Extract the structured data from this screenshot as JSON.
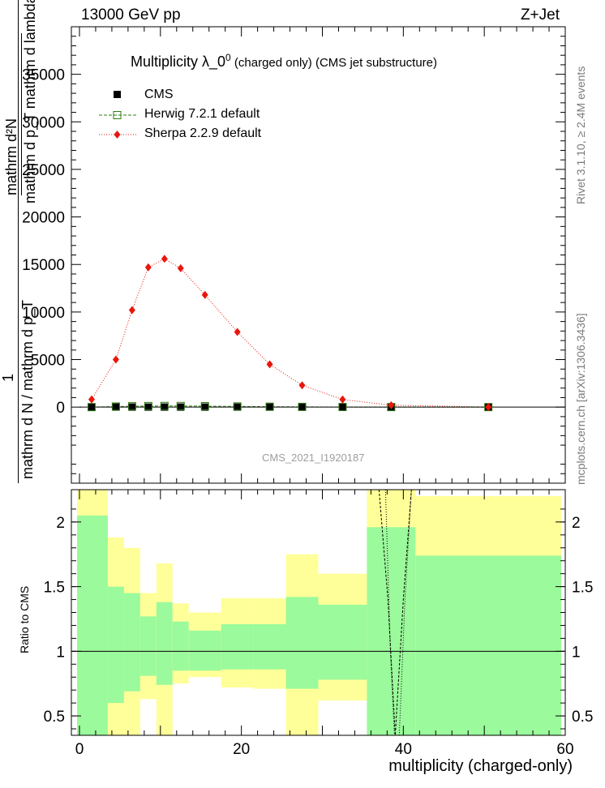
{
  "header": {
    "energy_label": "13000 GeV pp",
    "process_label": "Z+Jet"
  },
  "side_labels": {
    "rivet": "Rivet 3.1.10, ≥ 2.4M events",
    "mcplots": "mcplots.cern.ch [arXiv:1306.3436]"
  },
  "colors": {
    "data": "#000000",
    "herwig": "#2e7d12",
    "sherpa": "#e8160c",
    "band_inner": "#9bfa9b",
    "band_outer": "#ffff99"
  },
  "chart_data": [
    {
      "type": "scatter",
      "panel": "main",
      "title": "Multiplicity  λ_0⁰ (charged only) (CMS jet substructure)",
      "title_parts": {
        "main": "Multiplicity  λ_0",
        "superscript": "0",
        "suffix": " (charged only) (CMS jet substructure)"
      },
      "ylabel_parts": [
        "mathrm d²N",
        "mathrm d p_T mathrm d lambda",
        "1",
        "mathrm d N / mathrm d p_T"
      ],
      "xlim": [
        -1,
        60
      ],
      "ylim": [
        -8000,
        40000
      ],
      "yticks": [
        0,
        5000,
        10000,
        15000,
        20000,
        25000,
        30000,
        35000
      ],
      "ytick_labels": [
        "0",
        "5000",
        "10000",
        "15000",
        "20000",
        "25000",
        "30000",
        "35000"
      ],
      "watermark": "CMS_2021_I1920187",
      "legend": [
        "CMS",
        "Herwig 7.2.1 default",
        "Sherpa 2.2.9 default"
      ],
      "bins": [
        [
          0,
          4
        ],
        [
          4,
          6
        ],
        [
          6,
          8
        ],
        [
          8,
          10
        ],
        [
          10,
          12
        ],
        [
          12,
          14
        ],
        [
          14,
          18
        ],
        [
          18,
          22
        ],
        [
          22,
          26
        ],
        [
          26,
          30
        ],
        [
          30,
          36
        ],
        [
          36,
          42
        ],
        [
          42,
          60
        ]
      ],
      "series": [
        {
          "name": "CMS",
          "x": [
            1.5,
            4.5,
            6.5,
            8.5,
            10.5,
            12.5,
            15.5,
            19.5,
            23.5,
            27.5,
            32.5,
            38.5,
            50.5
          ],
          "values": [
            0,
            2,
            3,
            4,
            4,
            4,
            3,
            2,
            1,
            1,
            0.5,
            0.1,
            0.01
          ]
        },
        {
          "name": "Herwig 7.2.1 default",
          "x": [
            1.5,
            4.5,
            6.5,
            8.5,
            10.5,
            12.5,
            15.5,
            19.5,
            23.5,
            27.5,
            32.5,
            38.5,
            50.5
          ],
          "values": [
            0,
            60,
            90,
            110,
            120,
            115,
            100,
            70,
            45,
            25,
            10,
            3,
            0.5
          ]
        },
        {
          "name": "Sherpa 2.2.9 default",
          "x": [
            1.5,
            4.5,
            6.5,
            8.5,
            10.5,
            12.5,
            15.5,
            19.5,
            23.5,
            27.5,
            32.5,
            38.5,
            50.5
          ],
          "values": [
            800,
            5000,
            10200,
            14700,
            15600,
            14600,
            11800,
            7900,
            4500,
            2300,
            800,
            200,
            5
          ]
        }
      ]
    },
    {
      "type": "area",
      "panel": "ratio",
      "ylabel": "Ratio to CMS",
      "xlabel": "multiplicity (charged-only)",
      "xlim": [
        -1,
        60
      ],
      "ylim": [
        0.35,
        2.25
      ],
      "reference_line": 1,
      "xticks": [
        0,
        20,
        40,
        60
      ],
      "xtick_labels": [
        "0",
        "20",
        "40",
        "60"
      ],
      "yticks": [
        0.5,
        1,
        1.5,
        2
      ],
      "ytick_labels": [
        "0.5",
        "1",
        "1.5",
        "2"
      ],
      "bands": [
        {
          "x": [
            -0.3,
            3.5
          ],
          "inner": [
            0.3,
            2.05
          ],
          "outer": [
            0.3,
            2.3
          ]
        },
        {
          "x": [
            3.5,
            5.5
          ],
          "inner": [
            0.6,
            1.5
          ],
          "outer": [
            0.3,
            1.88
          ]
        },
        {
          "x": [
            5.5,
            7.5
          ],
          "inner": [
            0.69,
            1.45
          ],
          "outer": [
            0.3,
            1.8
          ]
        },
        {
          "x": [
            7.5,
            9.5
          ],
          "inner": [
            0.81,
            1.27
          ],
          "outer": [
            0.63,
            1.45
          ]
        },
        {
          "x": [
            9.5,
            11.5
          ],
          "inner": [
            0.74,
            1.38
          ],
          "outer": [
            0.3,
            1.68
          ]
        },
        {
          "x": [
            11.5,
            13.5
          ],
          "inner": [
            0.85,
            1.23
          ],
          "outer": [
            0.75,
            1.37
          ]
        },
        {
          "x": [
            13.5,
            17.5
          ],
          "inner": [
            0.85,
            1.16
          ],
          "outer": [
            0.8,
            1.3
          ]
        },
        {
          "x": [
            17.5,
            21.5
          ],
          "inner": [
            0.86,
            1.21
          ],
          "outer": [
            0.72,
            1.41
          ]
        },
        {
          "x": [
            21.5,
            25.5
          ],
          "inner": [
            0.86,
            1.21
          ],
          "outer": [
            0.71,
            1.41
          ]
        },
        {
          "x": [
            25.5,
            29.5
          ],
          "inner": [
            0.71,
            1.42
          ],
          "outer": [
            0.3,
            1.75
          ]
        },
        {
          "x": [
            29.5,
            35.5
          ],
          "inner": [
            0.78,
            1.36
          ],
          "outer": [
            0.62,
            1.6
          ]
        },
        {
          "x": [
            35.5,
            41.5
          ],
          "inner": [
            0.3,
            1.96
          ],
          "outer": [
            0.3,
            2.3
          ]
        },
        {
          "x": [
            41.5,
            59.5
          ],
          "inner": [
            0.3,
            1.74
          ],
          "outer": [
            0.3,
            2.2
          ]
        }
      ],
      "herwig_curve": {
        "x": [
          37.0,
          38.1,
          39.0,
          40.0,
          41.0
        ],
        "y": [
          2.4,
          1.4,
          0.35,
          1.4,
          2.4
        ]
      },
      "sherpa_curve": {
        "x": [
          37.8,
          38.4,
          38.9,
          39.5,
          40.2,
          41.0
        ],
        "y": [
          2.4,
          1.0,
          0.35,
          0.35,
          1.4,
          2.4
        ]
      }
    }
  ]
}
